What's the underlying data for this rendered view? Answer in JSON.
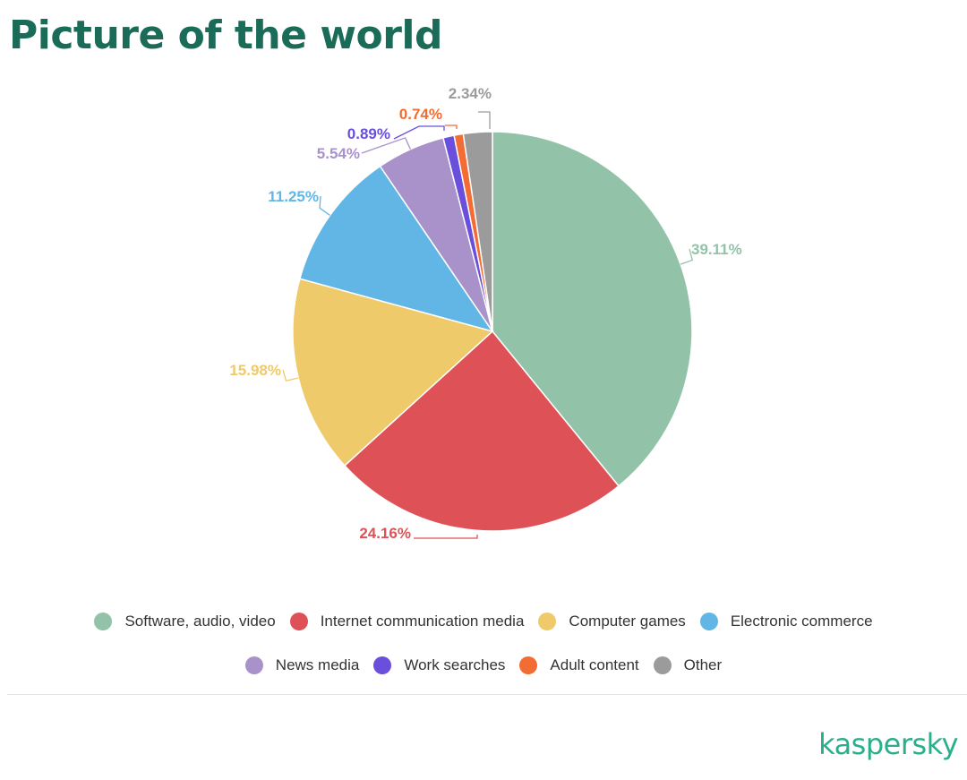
{
  "title": "Picture of the world",
  "brand": "kaspersky",
  "chart_data": {
    "type": "pie",
    "title": "Picture of the world",
    "slices": [
      {
        "name": "Software, audio, video",
        "value": 39.11,
        "label": "39.11%",
        "color": "#92c3a8"
      },
      {
        "name": "Internet communication media",
        "value": 24.16,
        "label": "24.16%",
        "color": "#de5257"
      },
      {
        "name": "Computer games",
        "value": 15.98,
        "label": "15.98%",
        "color": "#efca6a"
      },
      {
        "name": "Electronic commerce",
        "value": 11.25,
        "label": "11.25%",
        "color": "#61b6e6"
      },
      {
        "name": "News media",
        "value": 5.54,
        "label": "5.54%",
        "color": "#a992c9"
      },
      {
        "name": "Work searches",
        "value": 0.89,
        "label": "0.89%",
        "color": "#6a4fdc"
      },
      {
        "name": "Adult content",
        "value": 0.74,
        "label": "0.74%",
        "color": "#f36c34"
      },
      {
        "name": "Other",
        "value": 2.34,
        "label": "2.34%",
        "color": "#9b9b9b"
      }
    ],
    "legend_position": "bottom"
  }
}
